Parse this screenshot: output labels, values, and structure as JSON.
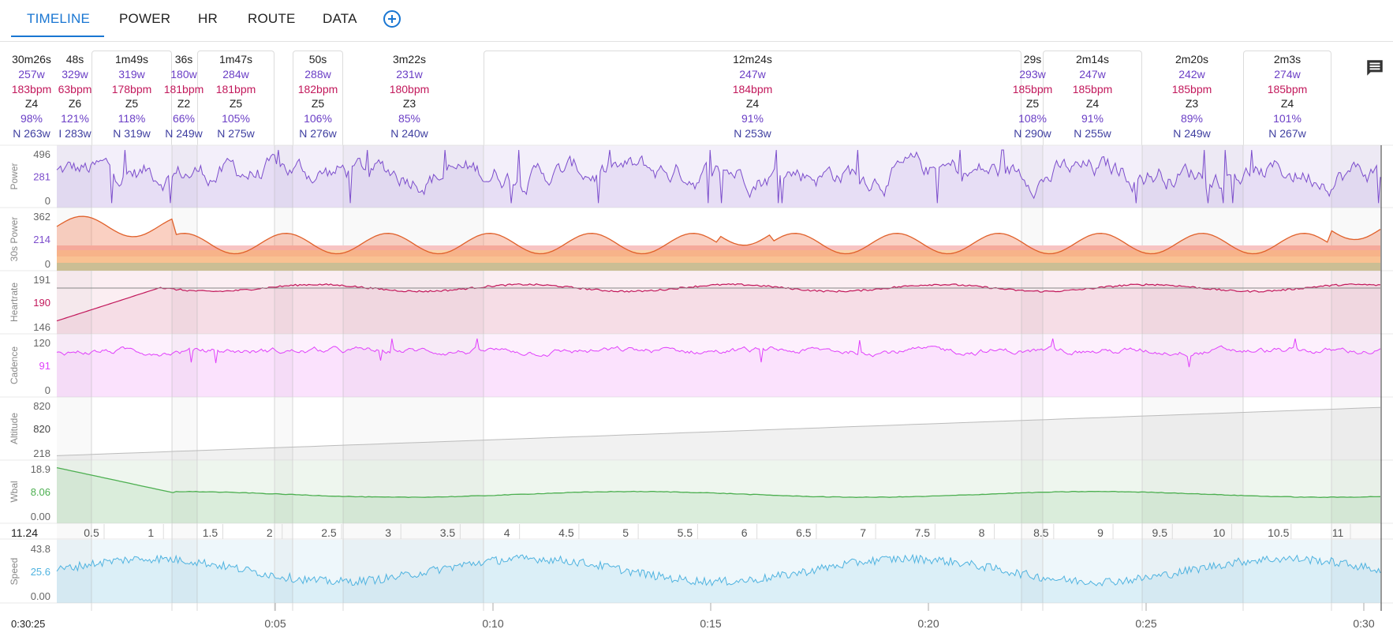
{
  "tabs": [
    {
      "label": "TIMELINE",
      "active": true
    },
    {
      "label": "POWER"
    },
    {
      "label": "HR"
    },
    {
      "label": "ROUTE"
    },
    {
      "label": "DATA"
    }
  ],
  "colors": {
    "accent": "#1976d2",
    "power": "#7c4dcc",
    "heartrate": "#c2185b",
    "cadence": "#e040fb",
    "altitude": "#bbbbbb",
    "wbal": "#4caf50",
    "speed": "#4fb3e0"
  },
  "interval_summary": [
    {
      "duration": "30m26s",
      "watts": "257w",
      "hr": "183bpm",
      "zone": "Z4",
      "pct": "98%",
      "np": "N 263w"
    },
    {
      "duration": "48s",
      "watts": "329w",
      "hr": "63bpm",
      "zone": "Z6",
      "pct": "121%",
      "np": "I 283w"
    },
    {
      "duration": "1m49s",
      "watts": "319w",
      "hr": "178bpm",
      "zone": "Z5",
      "pct": "118%",
      "np": "N 319w"
    },
    {
      "duration": "36s",
      "watts": "180w",
      "hr": "181bpm",
      "zone": "Z2",
      "pct": "66%",
      "np": "N 249w"
    },
    {
      "duration": "1m47s",
      "watts": "284w",
      "hr": "181bpm",
      "zone": "Z5",
      "pct": "105%",
      "np": "N 275w"
    },
    {
      "duration": "50s",
      "watts": "288w",
      "hr": "182bpm",
      "zone": "Z5",
      "pct": "106%",
      "np": "N 276w"
    },
    {
      "duration": "3m22s",
      "watts": "231w",
      "hr": "180bpm",
      "zone": "Z3",
      "pct": "85%",
      "np": "N 240w"
    },
    {
      "duration": "12m24s",
      "watts": "247w",
      "hr": "184bpm",
      "zone": "Z4",
      "pct": "91%",
      "np": "N 253w"
    },
    {
      "duration": "29s",
      "watts": "293w",
      "hr": "185bpm",
      "zone": "Z5",
      "pct": "108%",
      "np": "N 290w"
    },
    {
      "duration": "2m14s",
      "watts": "247w",
      "hr": "185bpm",
      "zone": "Z4",
      "pct": "91%",
      "np": "N 255w"
    },
    {
      "duration": "2m20s",
      "watts": "242w",
      "hr": "185bpm",
      "zone": "Z3",
      "pct": "89%",
      "np": "N 249w"
    },
    {
      "duration": "2m3s",
      "watts": "274w",
      "hr": "185bpm",
      "zone": "Z4",
      "pct": "101%",
      "np": "N 267w"
    }
  ],
  "chart_data": {
    "type": "line",
    "x_unit": "elapsed time",
    "x_ticks": [
      "0:05",
      "0:10",
      "0:15",
      "0:20",
      "0:25",
      "0:30"
    ],
    "x_start_label": "0:30:25",
    "distance_value": "11.24",
    "distance_ticks": [
      "0.5",
      "1",
      "1.5",
      "2",
      "2.5",
      "3",
      "3.5",
      "4",
      "4.5",
      "5",
      "5.5",
      "6",
      "6.5",
      "7",
      "7.5",
      "8",
      "8.5",
      "9",
      "9.5",
      "10",
      "10.5",
      "11"
    ],
    "panels": [
      {
        "name": "Power",
        "ticks": [
          "496",
          "281",
          "0"
        ],
        "value": "281",
        "range": [
          0,
          496
        ]
      },
      {
        "name": "30s Power",
        "ticks": [
          "362",
          "214",
          "0"
        ],
        "value": "214",
        "range": [
          0,
          362
        ]
      },
      {
        "name": "Heartrate",
        "ticks": [
          "191",
          "190",
          "146"
        ],
        "value": "190",
        "range": [
          146,
          191
        ]
      },
      {
        "name": "Cadence",
        "ticks": [
          "120",
          "91",
          "0"
        ],
        "value": "91",
        "range": [
          0,
          120
        ]
      },
      {
        "name": "Altitude",
        "ticks": [
          "820",
          "820",
          "218"
        ],
        "value": "820",
        "range": [
          218,
          820
        ]
      },
      {
        "name": "Wbal",
        "ticks": [
          "18.9",
          "8.06",
          "0.00"
        ],
        "value": "8.06",
        "range": [
          0,
          18.9
        ]
      },
      {
        "name": "Speed",
        "ticks": [
          "43.8",
          "25.6",
          "0.00"
        ],
        "value": "25.6",
        "range": [
          0,
          43.8
        ]
      }
    ]
  }
}
